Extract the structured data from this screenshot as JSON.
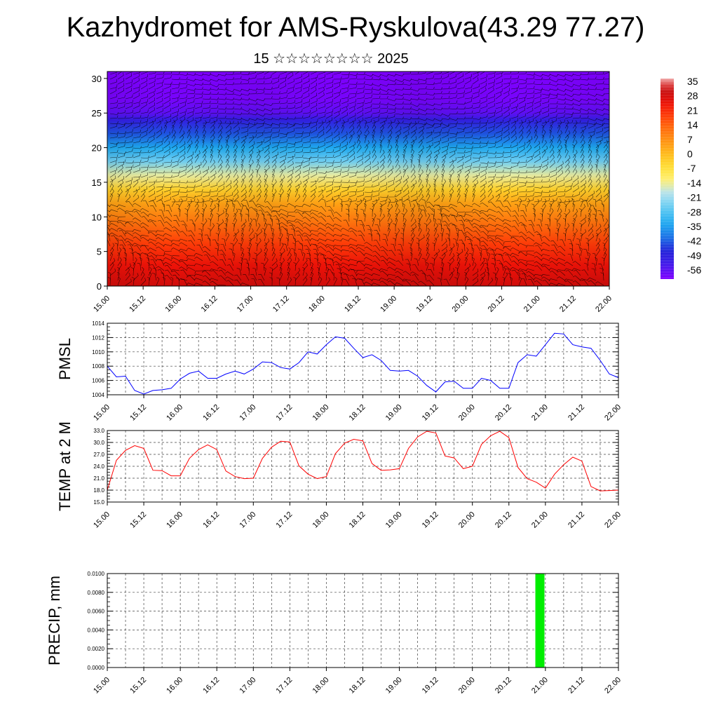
{
  "title": "Kazhydromet for AMS-Ryskulova(43.29 77.27)",
  "subtitle": "15 ☆☆☆☆☆☆☆☆ 2025",
  "time_ticks": [
    "15.00",
    "15.12",
    "16.00",
    "16.12",
    "17.00",
    "17.12",
    "18.00",
    "18.12",
    "19.00",
    "19.12",
    "20.00",
    "20.12",
    "21.00",
    "21.12",
    "22.00"
  ],
  "chart_data": [
    {
      "type": "heatmap",
      "title": "",
      "ylabel": "",
      "x_ticks": [
        "15.00",
        "15.12",
        "16.00",
        "16.12",
        "17.00",
        "17.12",
        "18.00",
        "18.12",
        "19.00",
        "19.12",
        "20.00",
        "20.12",
        "21.00",
        "21.12",
        "22.00"
      ],
      "ylim": [
        0,
        31
      ],
      "y_ticks": [
        0,
        5,
        10,
        15,
        20,
        25,
        30
      ],
      "colorbar_labels": [
        "35",
        "28",
        "21",
        "14",
        "7",
        "0",
        "-7",
        "-14",
        "-21",
        "-28",
        "-35",
        "-42",
        "-49",
        "-56"
      ],
      "colorbar_range": [
        -60,
        38
      ],
      "temperature_profile": [
        {
          "level": 0,
          "value": 30
        },
        {
          "level": 3,
          "value": 26
        },
        {
          "level": 6,
          "value": 20
        },
        {
          "level": 9,
          "value": 13
        },
        {
          "level": 12,
          "value": 5
        },
        {
          "level": 14,
          "value": -3
        },
        {
          "level": 16,
          "value": -14
        },
        {
          "level": 18,
          "value": -24
        },
        {
          "level": 20,
          "value": -33
        },
        {
          "level": 22,
          "value": -42
        },
        {
          "level": 24,
          "value": -50
        },
        {
          "level": 25,
          "value": -56
        },
        {
          "level": 27,
          "value": -59
        },
        {
          "level": 31,
          "value": -60
        }
      ],
      "overlay": "wind barbs"
    },
    {
      "type": "line",
      "ylabel": "PMSL",
      "ylim": [
        1004,
        1014
      ],
      "y_ticks": [
        "1004",
        "1006",
        "1008",
        "1010",
        "1012",
        "1014"
      ],
      "series": [
        {
          "color": "#0000ff",
          "values": [
            1008,
            1006.5,
            1006.6,
            1004.6,
            1004.1,
            1004.6,
            1004.7,
            1004.9,
            1006.2,
            1007,
            1007.3,
            1006.3,
            1006.3,
            1006.9,
            1007.3,
            1006.9,
            1007.6,
            1008.6,
            1008.5,
            1007.8,
            1007.6,
            1008.5,
            1010,
            1009.7,
            1011,
            1012.1,
            1011.9,
            1010.5,
            1009.2,
            1009.6,
            1008.8,
            1007.4,
            1007.3,
            1007.4,
            1006.6,
            1005.3,
            1004.4,
            1005.8,
            1005.9,
            1004.9,
            1004.9,
            1006.3,
            1006,
            1004.9,
            1004.9,
            1008.5,
            1009.6,
            1009.4,
            1011,
            1012.6,
            1012.5,
            1011,
            1010.7,
            1010.5,
            1008.8,
            1006.9,
            1006.4
          ]
        }
      ]
    },
    {
      "type": "line",
      "ylabel": "TEMP at 2 M",
      "ylim": [
        15,
        33
      ],
      "y_ticks": [
        "15.0",
        "18.0",
        "21.0",
        "24.0",
        "27.0",
        "30.0",
        "33.0"
      ],
      "series": [
        {
          "color": "#ff0000",
          "values": [
            18,
            25.5,
            28,
            29.2,
            28.5,
            23,
            22.9,
            21.6,
            21.6,
            26,
            28.2,
            29.4,
            28.2,
            22.8,
            21.4,
            20.9,
            21,
            26,
            28.8,
            30.3,
            30.1,
            24.1,
            22,
            20.9,
            21.4,
            27.2,
            29.8,
            30.8,
            30.4,
            24.7,
            23,
            23.1,
            23.4,
            28.5,
            31.4,
            32.8,
            32.4,
            26.6,
            26.1,
            23.4,
            24,
            29.5,
            31.7,
            32.8,
            31.2,
            23.7,
            20.9,
            20,
            18.5,
            22,
            24.4,
            26.3,
            25.3,
            18.9,
            17.8,
            17.9,
            18
          ]
        }
      ]
    },
    {
      "type": "bar",
      "ylabel": "PRECIP, mm",
      "ylim": [
        0,
        0.01
      ],
      "y_ticks": [
        "0.0000",
        "0.0020",
        "0.0040",
        "0.0060",
        "0.0080",
        "0.0100"
      ],
      "bars": [
        {
          "time_index": 70,
          "value": 0.01,
          "color": "#00ee00"
        }
      ]
    }
  ]
}
